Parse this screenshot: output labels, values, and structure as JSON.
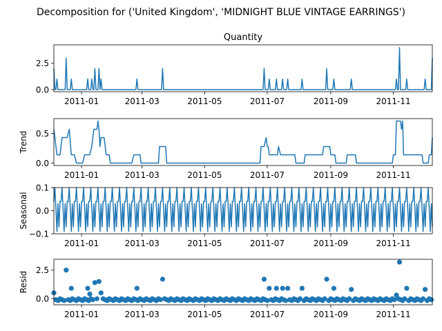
{
  "figure": {
    "suptitle": "Decomposition for ('United Kingdom', 'MIDNIGHT BLUE VINTAGE EARRINGS')"
  },
  "colors": {
    "series": "#1f77b4",
    "axis": "#000000",
    "background": "#ffffff"
  },
  "chart_data": [
    {
      "type": "line",
      "panel": "observed",
      "title": "Quantity",
      "ylabel": "",
      "x_start": "2010-12-05",
      "x_end": "2011-12-09",
      "xlim": [
        "2010-12-05",
        "2011-12-09"
      ],
      "ylim": [
        -0.2,
        4.25
      ],
      "xticks": [
        "2011-01",
        "2011-03",
        "2011-05",
        "2011-07",
        "2011-09",
        "2011-11"
      ],
      "yticks": [
        0.0,
        2.5
      ],
      "ytick_labels": [
        "0.0",
        "2.5"
      ],
      "grid": false,
      "baseline": 0,
      "points": [
        [
          "2010-12-05",
          2
        ],
        [
          "2010-12-08",
          1
        ],
        [
          "2010-12-17",
          3
        ],
        [
          "2010-12-22",
          1
        ],
        [
          "2011-01-07",
          1
        ],
        [
          "2011-01-11",
          1
        ],
        [
          "2011-01-14",
          2
        ],
        [
          "2011-01-18",
          2
        ],
        [
          "2011-01-20",
          1
        ],
        [
          "2011-02-24",
          1
        ],
        [
          "2011-03-21",
          2
        ],
        [
          "2011-06-28",
          2
        ],
        [
          "2011-07-03",
          1
        ],
        [
          "2011-07-10",
          1
        ],
        [
          "2011-07-16",
          1
        ],
        [
          "2011-07-21",
          1
        ],
        [
          "2011-08-04",
          1
        ],
        [
          "2011-08-28",
          2
        ],
        [
          "2011-09-04",
          1
        ],
        [
          "2011-09-21",
          1
        ],
        [
          "2011-11-04",
          1
        ],
        [
          "2011-11-07",
          4
        ],
        [
          "2011-11-14",
          1
        ],
        [
          "2011-12-02",
          1
        ],
        [
          "2011-12-09",
          3
        ]
      ]
    },
    {
      "type": "line",
      "panel": "trend",
      "title": "",
      "ylabel": "Trend",
      "xlim": [
        "2010-12-05",
        "2011-12-09"
      ],
      "ylim": [
        -0.04,
        0.75
      ],
      "xticks": [
        "2011-01",
        "2011-03",
        "2011-05",
        "2011-07",
        "2011-09",
        "2011-11"
      ],
      "yticks": [
        0.0,
        0.5
      ],
      "ytick_labels": [
        "0.0",
        "0.5"
      ],
      "grid": false,
      "series": [
        [
          "2010-12-05",
          0.57
        ],
        [
          "2010-12-08",
          0.14
        ],
        [
          "2010-12-11",
          0.14
        ],
        [
          "2010-12-13",
          0.43
        ],
        [
          "2010-12-18",
          0.43
        ],
        [
          "2010-12-20",
          0.57
        ],
        [
          "2010-12-22",
          0.14
        ],
        [
          "2010-12-25",
          0.14
        ],
        [
          "2010-12-27",
          0.0
        ],
        [
          "2011-01-02",
          0.0
        ],
        [
          "2011-01-04",
          0.14
        ],
        [
          "2011-01-09",
          0.14
        ],
        [
          "2011-01-11",
          0.28
        ],
        [
          "2011-01-13",
          0.57
        ],
        [
          "2011-01-16",
          0.57
        ],
        [
          "2011-01-17",
          0.71
        ],
        [
          "2011-01-18",
          0.57
        ],
        [
          "2011-01-19",
          0.28
        ],
        [
          "2011-01-20",
          0.43
        ],
        [
          "2011-01-23",
          0.43
        ],
        [
          "2011-01-25",
          0.14
        ],
        [
          "2011-01-28",
          0.14
        ],
        [
          "2011-01-29",
          0.0
        ],
        [
          "2011-02-19",
          0.0
        ],
        [
          "2011-02-21",
          0.14
        ],
        [
          "2011-02-27",
          0.14
        ],
        [
          "2011-02-28",
          0.0
        ],
        [
          "2011-03-17",
          0.0
        ],
        [
          "2011-03-18",
          0.28
        ],
        [
          "2011-03-24",
          0.28
        ],
        [
          "2011-03-25",
          0.0
        ],
        [
          "2011-06-24",
          0.0
        ],
        [
          "2011-06-25",
          0.28
        ],
        [
          "2011-06-28",
          0.28
        ],
        [
          "2011-06-30",
          0.43
        ],
        [
          "2011-07-01",
          0.28
        ],
        [
          "2011-07-02",
          0.28
        ],
        [
          "2011-07-03",
          0.14
        ],
        [
          "2011-07-11",
          0.14
        ],
        [
          "2011-07-12",
          0.28
        ],
        [
          "2011-07-14",
          0.14
        ],
        [
          "2011-07-28",
          0.14
        ],
        [
          "2011-07-29",
          0.0
        ],
        [
          "2011-08-06",
          0.0
        ],
        [
          "2011-08-07",
          0.14
        ],
        [
          "2011-08-24",
          0.14
        ],
        [
          "2011-08-25",
          0.28
        ],
        [
          "2011-08-31",
          0.28
        ],
        [
          "2011-09-01",
          0.14
        ],
        [
          "2011-09-05",
          0.14
        ],
        [
          "2011-09-06",
          0.0
        ],
        [
          "2011-09-16",
          0.0
        ],
        [
          "2011-09-17",
          0.14
        ],
        [
          "2011-09-25",
          0.14
        ],
        [
          "2011-09-26",
          0.0
        ],
        [
          "2011-10-31",
          0.0
        ],
        [
          "2011-11-01",
          0.14
        ],
        [
          "2011-11-03",
          0.14
        ],
        [
          "2011-11-04",
          0.71
        ],
        [
          "2011-11-08",
          0.71
        ],
        [
          "2011-11-09",
          0.57
        ],
        [
          "2011-11-10",
          0.71
        ],
        [
          "2011-11-11",
          0.14
        ],
        [
          "2011-11-29",
          0.14
        ],
        [
          "2011-11-30",
          0.0
        ],
        [
          "2011-12-05",
          0.0
        ],
        [
          "2011-12-06",
          0.14
        ],
        [
          "2011-12-08",
          0.14
        ],
        [
          "2011-12-09",
          0.43
        ]
      ]
    },
    {
      "type": "line",
      "panel": "seasonal",
      "title": "",
      "ylabel": "Seasonal",
      "xlim": [
        "2010-12-05",
        "2011-12-09"
      ],
      "ylim": [
        -0.1,
        0.1
      ],
      "xticks": [
        "2011-01",
        "2011-03",
        "2011-05",
        "2011-07",
        "2011-09",
        "2011-11"
      ],
      "yticks": [
        -0.1,
        0.0,
        0.1
      ],
      "ytick_labels": [
        "−0.1",
        "0.0",
        "0.1"
      ],
      "grid": false,
      "period_days": 7,
      "weekly_pattern": [
        0.04,
        0.1,
        0.01,
        -0.09,
        0.03,
        -0.07,
        0.04
      ]
    },
    {
      "type": "scatter",
      "panel": "resid",
      "title": "",
      "ylabel": "Resid",
      "xlim": [
        "2010-12-05",
        "2011-12-09"
      ],
      "ylim": [
        -0.55,
        3.45
      ],
      "xticks": [
        "2011-01",
        "2011-03",
        "2011-05",
        "2011-07",
        "2011-09",
        "2011-11"
      ],
      "yticks": [
        0.0,
        2.5
      ],
      "ytick_labels": [
        "0.0",
        "2.5"
      ],
      "grid": false,
      "baseline_value": -0.1,
      "outliers": [
        [
          "2010-12-05",
          0.5
        ],
        [
          "2010-12-17",
          2.5
        ],
        [
          "2010-12-22",
          0.9
        ],
        [
          "2011-01-07",
          0.9
        ],
        [
          "2011-01-09",
          0.4
        ],
        [
          "2011-01-14",
          1.4
        ],
        [
          "2011-01-18",
          1.5
        ],
        [
          "2011-01-20",
          0.5
        ],
        [
          "2011-02-24",
          0.9
        ],
        [
          "2011-03-21",
          1.7
        ],
        [
          "2011-06-28",
          1.7
        ],
        [
          "2011-07-03",
          0.9
        ],
        [
          "2011-07-10",
          0.9
        ],
        [
          "2011-07-16",
          0.9
        ],
        [
          "2011-07-21",
          0.9
        ],
        [
          "2011-08-04",
          0.9
        ],
        [
          "2011-08-28",
          1.7
        ],
        [
          "2011-09-04",
          0.9
        ],
        [
          "2011-09-21",
          0.8
        ],
        [
          "2011-11-04",
          0.3
        ],
        [
          "2011-11-07",
          3.2
        ],
        [
          "2011-11-14",
          0.9
        ],
        [
          "2011-12-02",
          0.8
        ]
      ]
    }
  ]
}
